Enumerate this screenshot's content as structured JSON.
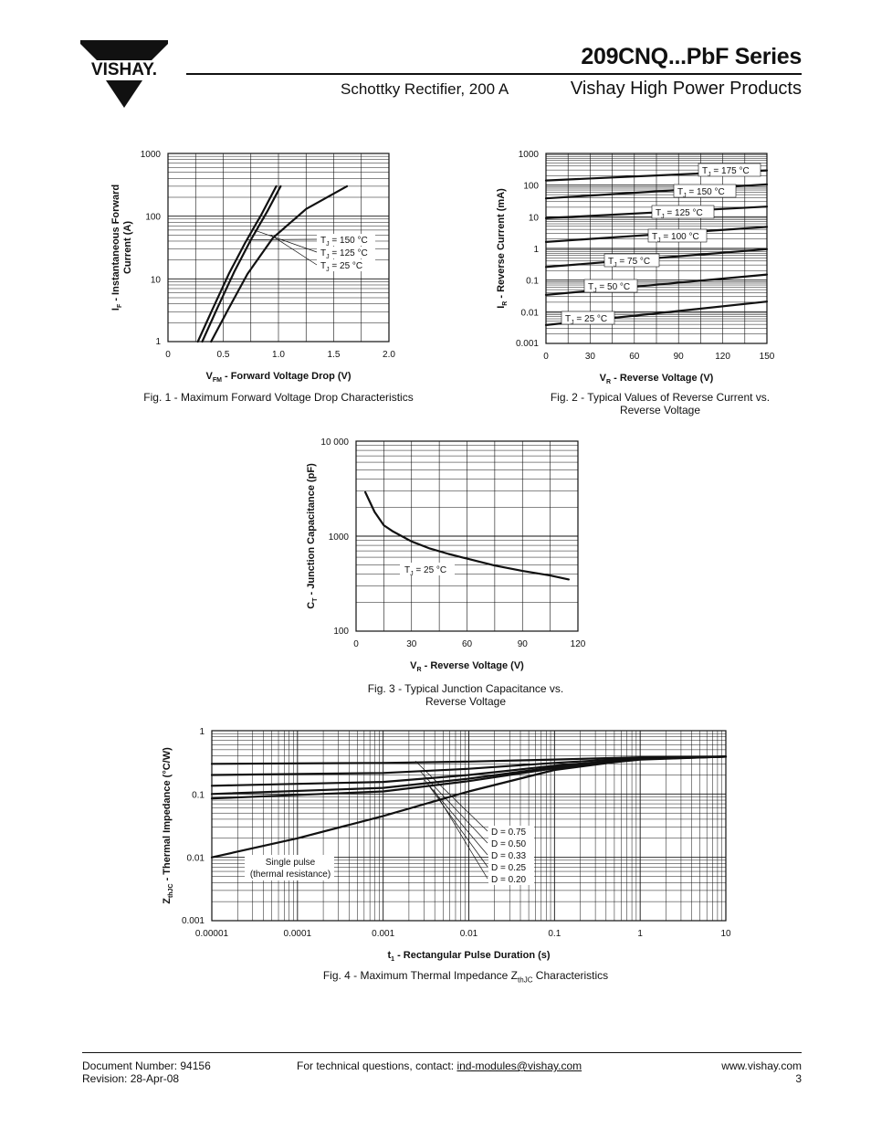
{
  "header": {
    "logo_text": "VISHAY.",
    "series_title": "209CNQ...PbF Series",
    "subtitle_left": "Schottky Rectifier, 200 A",
    "subtitle_right": "Vishay High Power Products"
  },
  "footer": {
    "doc_number": "Document Number: 94156",
    "revision": "Revision: 28-Apr-08",
    "contact_prefix": "For technical questions, contact: ",
    "contact_email": "ind-modules@vishay.com",
    "website": "www.vishay.com",
    "page_number": "3"
  },
  "chart_data": [
    {
      "id": "fig1",
      "type": "line",
      "caption": "Fig. 1 - Maximum Forward Voltage Drop Characteristics",
      "ylabel": "IF - Instantaneous Forward Current (A)",
      "ylabel_main": "I",
      "ylabel_sub": "F",
      "ylabel_rest": " - Instantaneous Forward",
      "ylabel_line2": "Current (A)",
      "xlabel_main": "V",
      "xlabel_sub": "FM",
      "xlabel_rest": " - Forward Voltage Drop (V)",
      "xlim": [
        0,
        2.0
      ],
      "ylim": [
        1,
        1000
      ],
      "yscale": "log",
      "xticks": [
        0,
        0.5,
        1.0,
        1.5,
        2.0
      ],
      "xtick_labels": [
        "0",
        "0.5",
        "1.0",
        "1.5",
        "2.0"
      ],
      "yticks": [
        1,
        10,
        100,
        1000
      ],
      "ytick_labels": [
        "1",
        "10",
        "100",
        "1000"
      ],
      "grid": true,
      "series": [
        {
          "name": "TJ = 150 °C",
          "label_main": "T",
          "label_sub": "J",
          "label_rest": " = 150 °C",
          "x": [
            0.27,
            0.4,
            0.55,
            0.7,
            0.85,
            0.98
          ],
          "y": [
            1,
            3.2,
            12,
            38,
            110,
            300
          ]
        },
        {
          "name": "TJ = 125 °C",
          "label_main": "T",
          "label_sub": "J",
          "label_rest": " = 125 °C",
          "x": [
            0.31,
            0.45,
            0.6,
            0.75,
            0.9,
            1.02
          ],
          "y": [
            1,
            3.5,
            13,
            42,
            120,
            300
          ]
        },
        {
          "name": "TJ = 25 °C",
          "label_main": "T",
          "label_sub": "J",
          "label_rest": " = 25 °C",
          "x": [
            0.39,
            0.55,
            0.72,
            0.95,
            1.25,
            1.62
          ],
          "y": [
            1,
            3.4,
            12,
            45,
            130,
            300
          ]
        }
      ]
    },
    {
      "id": "fig2",
      "type": "line",
      "caption": "Fig. 2 - Typical Values of Reverse Current vs.",
      "caption_line2": "Reverse Voltage",
      "ylabel_main": "I",
      "ylabel_sub": "R",
      "ylabel_rest": " - Reverse Current (mA)",
      "xlabel_main": "V",
      "xlabel_sub": "R",
      "xlabel_rest": " - Reverse Voltage (V)",
      "xlim": [
        0,
        150
      ],
      "ylim": [
        0.001,
        1000
      ],
      "yscale": "log",
      "xticks": [
        0,
        30,
        60,
        90,
        120,
        150
      ],
      "xtick_labels": [
        "0",
        "30",
        "60",
        "90",
        "120",
        "150"
      ],
      "yticks": [
        0.001,
        0.01,
        0.1,
        1,
        10,
        100,
        1000
      ],
      "ytick_labels": [
        "0.001",
        "0.01",
        "0.1",
        "1",
        "10",
        "100",
        "1000"
      ],
      "grid": true,
      "series": [
        {
          "name": "TJ = 175 °C",
          "label_main": "T",
          "label_sub": "J",
          "label_rest": " = 175 °C",
          "x": [
            0,
            150
          ],
          "y": [
            140,
            290
          ]
        },
        {
          "name": "TJ = 150 °C",
          "label_main": "T",
          "label_sub": "J",
          "label_rest": " = 150 °C",
          "x": [
            0,
            150
          ],
          "y": [
            38,
            105
          ]
        },
        {
          "name": "TJ = 125 °C",
          "label_main": "T",
          "label_sub": "J",
          "label_rest": " = 125 °C",
          "x": [
            0,
            150
          ],
          "y": [
            9,
            21
          ]
        },
        {
          "name": "TJ = 100 °C",
          "label_main": "T",
          "label_sub": "J",
          "label_rest": " = 100 °C",
          "x": [
            0,
            150
          ],
          "y": [
            1.6,
            4.8
          ]
        },
        {
          "name": "TJ = 75 °C",
          "label_main": "T",
          "label_sub": "J",
          "label_rest": " = 75 °C",
          "x": [
            0,
            150
          ],
          "y": [
            0.26,
            0.95
          ]
        },
        {
          "name": "TJ = 50 °C",
          "label_main": "T",
          "label_sub": "J",
          "label_rest": " = 50 °C",
          "x": [
            0,
            150
          ],
          "y": [
            0.034,
            0.15
          ]
        },
        {
          "name": "TJ = 25 °C",
          "label_main": "T",
          "label_sub": "J",
          "label_rest": " = 25 °C",
          "x": [
            0,
            150
          ],
          "y": [
            0.0038,
            0.021
          ]
        }
      ]
    },
    {
      "id": "fig3",
      "type": "line",
      "caption": "Fig. 3 - Typical Junction Capacitance vs.",
      "caption_line2": "Reverse Voltage",
      "ylabel_main": "C",
      "ylabel_sub": "T",
      "ylabel_rest": " - Junction Capacitance (pF)",
      "xlabel_main": "V",
      "xlabel_sub": "R",
      "xlabel_rest": " - Reverse Voltage (V)",
      "xlim": [
        0,
        120
      ],
      "ylim": [
        100,
        10000
      ],
      "yscale": "log",
      "xticks": [
        0,
        30,
        60,
        90,
        120
      ],
      "xtick_labels": [
        "0",
        "30",
        "60",
        "90",
        "120"
      ],
      "yticks": [
        100,
        1000,
        10000
      ],
      "ytick_labels": [
        "100",
        "1000",
        "10 000"
      ],
      "grid": true,
      "series": [
        {
          "name": "TJ = 25 °C",
          "label_main": "T",
          "label_sub": "J",
          "label_rest": " = 25 °C",
          "x": [
            5,
            10,
            15,
            20,
            30,
            40,
            50,
            60,
            75,
            90,
            105,
            115
          ],
          "y": [
            2900,
            1800,
            1300,
            1120,
            880,
            740,
            650,
            580,
            490,
            430,
            385,
            350
          ]
        }
      ]
    },
    {
      "id": "fig4",
      "type": "line",
      "caption_prefix": "Fig. 4 - Maximum Thermal Impedance Z",
      "caption_sub": "thJC",
      "caption_suffix": " Characteristics",
      "ylabel_main": "Z",
      "ylabel_sub": "thJC",
      "ylabel_rest": " - Thermal Impedance (°C/W)",
      "xlabel_main": "t",
      "xlabel_sub": "1",
      "xlabel_rest": " - Rectangular Pulse Duration (s)",
      "xscale": "log",
      "yscale": "log",
      "xlim": [
        1e-05,
        10
      ],
      "ylim": [
        0.001,
        1
      ],
      "xticks": [
        1e-05,
        0.0001,
        0.001,
        0.01,
        0.1,
        1,
        10
      ],
      "xtick_labels": [
        "0.00001",
        "0.0001",
        "0.001",
        "0.01",
        "0.1",
        "1",
        "10"
      ],
      "yticks": [
        0.001,
        0.01,
        0.1,
        1
      ],
      "ytick_labels": [
        "0.001",
        "0.01",
        "0.1",
        "1"
      ],
      "grid": true,
      "annotation_single_pulse": "Single pulse",
      "annotation_thermal": "(thermal resistance)",
      "series": [
        {
          "name": "D = 0.75",
          "x": [
            1e-05,
            0.001,
            0.01,
            0.1,
            1,
            10
          ],
          "y": [
            0.3,
            0.31,
            0.325,
            0.35,
            0.38,
            0.39
          ]
        },
        {
          "name": "D = 0.50",
          "x": [
            1e-05,
            0.001,
            0.01,
            0.1,
            1,
            10
          ],
          "y": [
            0.2,
            0.215,
            0.25,
            0.31,
            0.37,
            0.39
          ]
        },
        {
          "name": "D = 0.33",
          "x": [
            1e-05,
            0.001,
            0.01,
            0.1,
            1,
            10
          ],
          "y": [
            0.135,
            0.155,
            0.2,
            0.28,
            0.36,
            0.39
          ]
        },
        {
          "name": "D = 0.25",
          "x": [
            1e-05,
            0.001,
            0.01,
            0.1,
            1,
            10
          ],
          "y": [
            0.1,
            0.125,
            0.175,
            0.265,
            0.355,
            0.39
          ]
        },
        {
          "name": "D = 0.20",
          "x": [
            1e-05,
            0.001,
            0.01,
            0.1,
            1,
            10
          ],
          "y": [
            0.085,
            0.11,
            0.16,
            0.255,
            0.35,
            0.39
          ]
        },
        {
          "name": "Single pulse",
          "x": [
            1e-05,
            0.0001,
            0.001,
            0.01,
            0.1,
            1,
            10
          ],
          "y": [
            0.01,
            0.02,
            0.045,
            0.11,
            0.24,
            0.36,
            0.39
          ]
        }
      ]
    }
  ]
}
